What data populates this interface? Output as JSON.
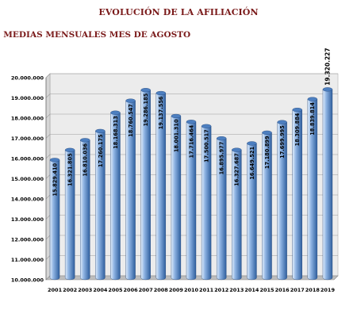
{
  "header": {
    "title": "EVOLUCIÓN DE LA AFILIACIÓN",
    "subtitle": ". MEDIAS MENSUALES MES DE AGOSTO"
  },
  "chart_data": {
    "type": "bar",
    "title": "EVOLUCIÓN DE LA AFILIACIÓN",
    "subtitle": ". MEDIAS MENSUALES MES DE AGOSTO",
    "categories": [
      "2001",
      "2002",
      "2003",
      "2004",
      "2005",
      "2006",
      "2007",
      "2008",
      "2009",
      "2010",
      "2011",
      "2012",
      "2013",
      "2014",
      "2015",
      "2016",
      "2017",
      "2018",
      "2019"
    ],
    "values": [
      15829410,
      16321805,
      16810036,
      17260175,
      18168313,
      18760547,
      19286185,
      19137556,
      18001310,
      17716464,
      17500517,
      16895977,
      16327687,
      16649521,
      17180899,
      17699995,
      18309884,
      18839814,
      19320227
    ],
    "value_labels": [
      "15.829.410",
      "16.321.805",
      "16.810.036",
      "17.260.175",
      "18.168.313",
      "18.760.547",
      "19.286.185",
      "19.137.556",
      "18.001.310",
      "17.716.464",
      "17.500.517",
      "16.895.977",
      "16.327.687",
      "16.649.521",
      "17.180.899",
      "17.699.995",
      "18.309.884",
      "18.839.814",
      "19.320.227"
    ],
    "y_ticks": [
      10000000,
      11000000,
      12000000,
      13000000,
      14000000,
      15000000,
      16000000,
      17000000,
      18000000,
      19000000,
      20000000
    ],
    "y_tick_labels": [
      "10.000.000",
      "11.000.000",
      "12.000.000",
      "13.000.000",
      "14.000.000",
      "15.000.000",
      "16.000.000",
      "17.000.000",
      "18.000.000",
      "19.000.000",
      "20.000.000"
    ],
    "ylim": [
      10000000,
      20000000
    ],
    "xlabel": "",
    "ylabel": "",
    "grid": true,
    "colors": {
      "bar_light": "#e2eefb",
      "bar_mid": "#8fb4e3",
      "bar_dark": "#2f5f9e",
      "bar_top": "#4d7fc0",
      "wall": "#ececec",
      "floor": "#bdbdbd",
      "grid": "#9a9a9a"
    }
  }
}
